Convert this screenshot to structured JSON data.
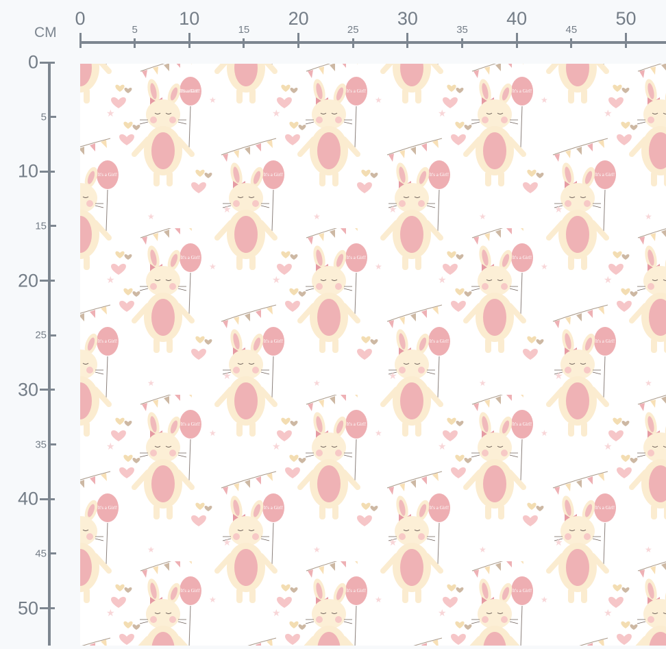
{
  "ruler": {
    "unit": "CM",
    "top_labels": [
      "0",
      "5",
      "10",
      "15",
      "20",
      "25",
      "30",
      "35",
      "40",
      "45",
      "50"
    ],
    "left_labels": [
      "0",
      "5",
      "10",
      "15",
      "20",
      "25",
      "30",
      "35",
      "40",
      "45",
      "50"
    ]
  },
  "fabric": {
    "balloon_text": "It's a Girl!",
    "colors": {
      "pink": "#eeb0b4",
      "cream": "#fbeccd",
      "tan": "#cdb8a3",
      "background": "#ffffff"
    }
  }
}
